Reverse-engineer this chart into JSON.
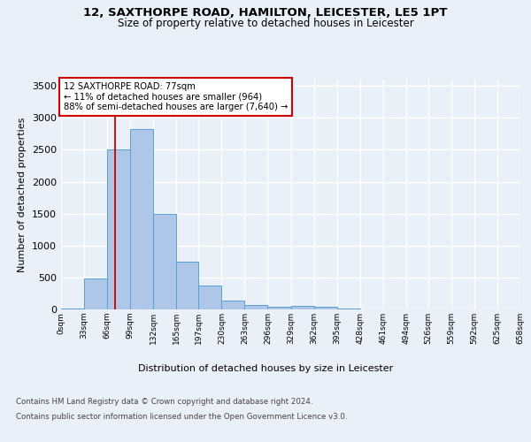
{
  "title_line1": "12, SAXTHORPE ROAD, HAMILTON, LEICESTER, LE5 1PT",
  "title_line2": "Size of property relative to detached houses in Leicester",
  "xlabel": "Distribution of detached houses by size in Leicester",
  "ylabel": "Number of detached properties",
  "footnote_line1": "Contains HM Land Registry data © Crown copyright and database right 2024.",
  "footnote_line2": "Contains public sector information licensed under the Open Government Licence v3.0.",
  "bar_edges": [
    0,
    33,
    66,
    99,
    132,
    165,
    197,
    230,
    263,
    296,
    329,
    362,
    395,
    428,
    461,
    494,
    526,
    559,
    592,
    625,
    658
  ],
  "bar_heights": [
    20,
    480,
    2510,
    2830,
    1500,
    745,
    380,
    145,
    75,
    40,
    55,
    35,
    20,
    0,
    0,
    0,
    0,
    0,
    0,
    0
  ],
  "bar_color": "#aec6e8",
  "bar_edgecolor": "#5a9fd4",
  "vline_x": 77,
  "vline_color": "#cc0000",
  "annotation_text": "12 SAXTHORPE ROAD: 77sqm\n← 11% of detached houses are smaller (964)\n88% of semi-detached houses are larger (7,640) →",
  "annotation_box_color": "#ffffff",
  "annotation_border_color": "#cc0000",
  "ylim": [
    0,
    3600
  ],
  "yticks": [
    0,
    500,
    1000,
    1500,
    2000,
    2500,
    3000,
    3500
  ],
  "bg_color": "#eaf0f8",
  "plot_bg_color": "#eaf0f8",
  "grid_color": "#ffffff",
  "tick_labels": [
    "0sqm",
    "33sqm",
    "66sqm",
    "99sqm",
    "132sqm",
    "165sqm",
    "197sqm",
    "230sqm",
    "263sqm",
    "296sqm",
    "329sqm",
    "362sqm",
    "395sqm",
    "428sqm",
    "461sqm",
    "494sqm",
    "526sqm",
    "559sqm",
    "592sqm",
    "625sqm",
    "658sqm"
  ]
}
